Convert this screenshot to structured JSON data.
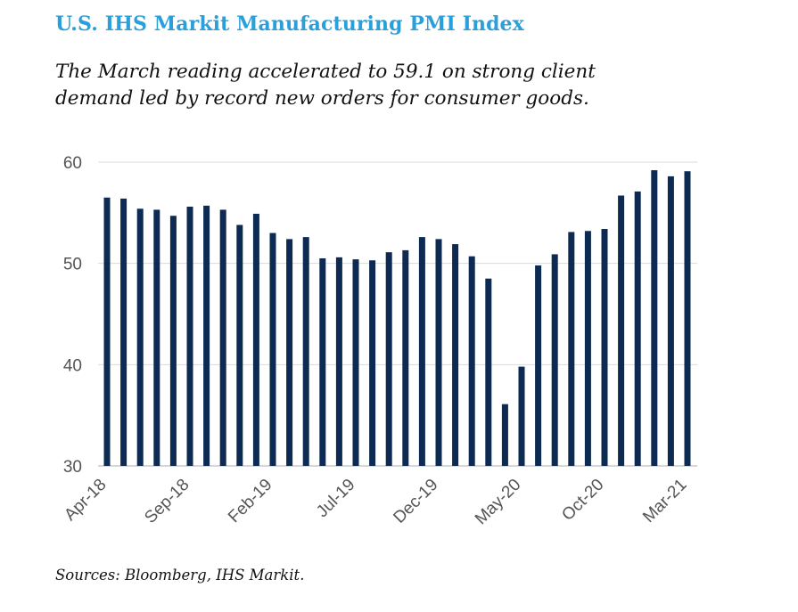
{
  "header": {
    "title": "U.S. IHS Markit Manufacturing PMI Index",
    "subtitle": "The March reading accelerated to 59.1 on strong client demand led by record new orders for consumer goods."
  },
  "footer": {
    "source": "Sources: Bloomberg, IHS Markit."
  },
  "colors": {
    "title": "#2b9fd9",
    "bar": "#0d2a52",
    "grid": "#d9d9d9",
    "axis_text": "#555555"
  },
  "chart_data": {
    "type": "bar",
    "title": "U.S. IHS Markit Manufacturing PMI Index",
    "xlabel": "",
    "ylabel": "",
    "ylim": [
      30,
      60
    ],
    "yticks": [
      30,
      40,
      50,
      60
    ],
    "grid": true,
    "categories": [
      "Apr-18",
      "May-18",
      "Jun-18",
      "Jul-18",
      "Aug-18",
      "Sep-18",
      "Oct-18",
      "Nov-18",
      "Dec-18",
      "Jan-19",
      "Feb-19",
      "Mar-19",
      "Apr-19",
      "May-19",
      "Jun-19",
      "Jul-19",
      "Aug-19",
      "Sep-19",
      "Oct-19",
      "Nov-19",
      "Dec-19",
      "Jan-20",
      "Feb-20",
      "Mar-20",
      "Apr-20",
      "May-20",
      "Jun-20",
      "Jul-20",
      "Aug-20",
      "Sep-20",
      "Oct-20",
      "Nov-20",
      "Dec-20",
      "Jan-21",
      "Feb-21",
      "Mar-21"
    ],
    "x_tick_labels": [
      "Apr-18",
      "Sep-18",
      "Feb-19",
      "Jul-19",
      "Dec-19",
      "May-20",
      "Oct-20",
      "Mar-21"
    ],
    "series": [
      {
        "values": [
          56.5,
          56.4,
          55.4,
          55.3,
          54.7,
          55.6,
          55.7,
          55.3,
          53.8,
          54.9,
          53.0,
          52.4,
          52.6,
          50.5,
          50.6,
          50.4,
          50.3,
          51.1,
          51.3,
          52.6,
          52.4,
          51.9,
          50.7,
          48.5,
          36.1,
          39.8,
          49.8,
          50.9,
          53.1,
          53.2,
          53.4,
          56.7,
          57.1,
          59.2,
          58.6,
          59.1
        ]
      }
    ]
  }
}
